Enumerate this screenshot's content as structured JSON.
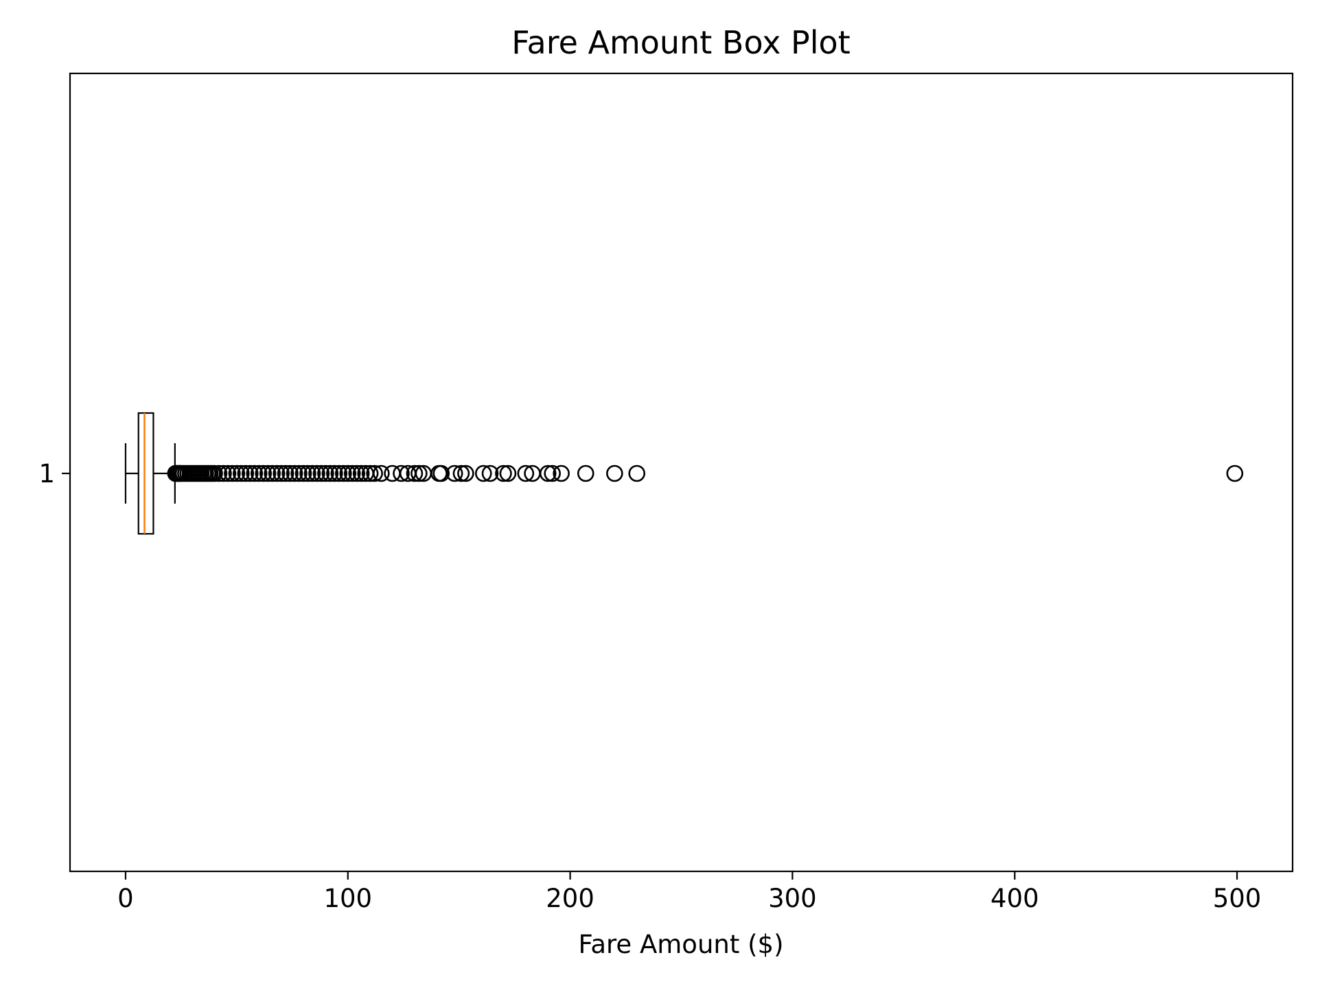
{
  "chart_data": {
    "type": "box",
    "orientation": "horizontal",
    "title": "Fare Amount Box Plot",
    "xlabel": "Fare Amount ($)",
    "ylabel": "",
    "xlim": [
      -25,
      525
    ],
    "xticks": [
      0,
      100,
      200,
      300,
      400,
      500
    ],
    "categories": [
      "1"
    ],
    "boxes": [
      {
        "category": "1",
        "whisker_low": 0,
        "q1": 5.8,
        "median": 8.5,
        "q3": 12.5,
        "whisker_high": 22.2,
        "outliers": [
          22.5,
          23,
          23.5,
          24,
          24.5,
          25,
          26,
          27,
          28,
          29,
          30,
          31,
          32,
          33,
          34,
          35,
          36,
          37,
          38,
          39,
          40,
          42,
          44,
          46,
          48,
          50,
          52,
          54,
          56,
          58,
          60,
          62,
          64,
          66,
          68,
          70,
          72,
          74,
          76,
          78,
          80,
          82,
          84,
          86,
          88,
          90,
          92,
          94,
          96,
          98,
          100,
          102,
          104,
          106,
          108,
          110,
          112,
          115,
          120,
          124,
          127,
          130,
          132,
          134,
          141,
          142,
          148,
          151,
          153,
          161,
          164,
          170,
          172,
          180,
          183,
          190,
          192,
          196,
          207,
          220,
          230,
          499
        ]
      }
    ],
    "grid": false,
    "colors": {
      "box_edge": "#000000",
      "median": "#ff7f0e",
      "outlier_edge": "#000000"
    }
  }
}
